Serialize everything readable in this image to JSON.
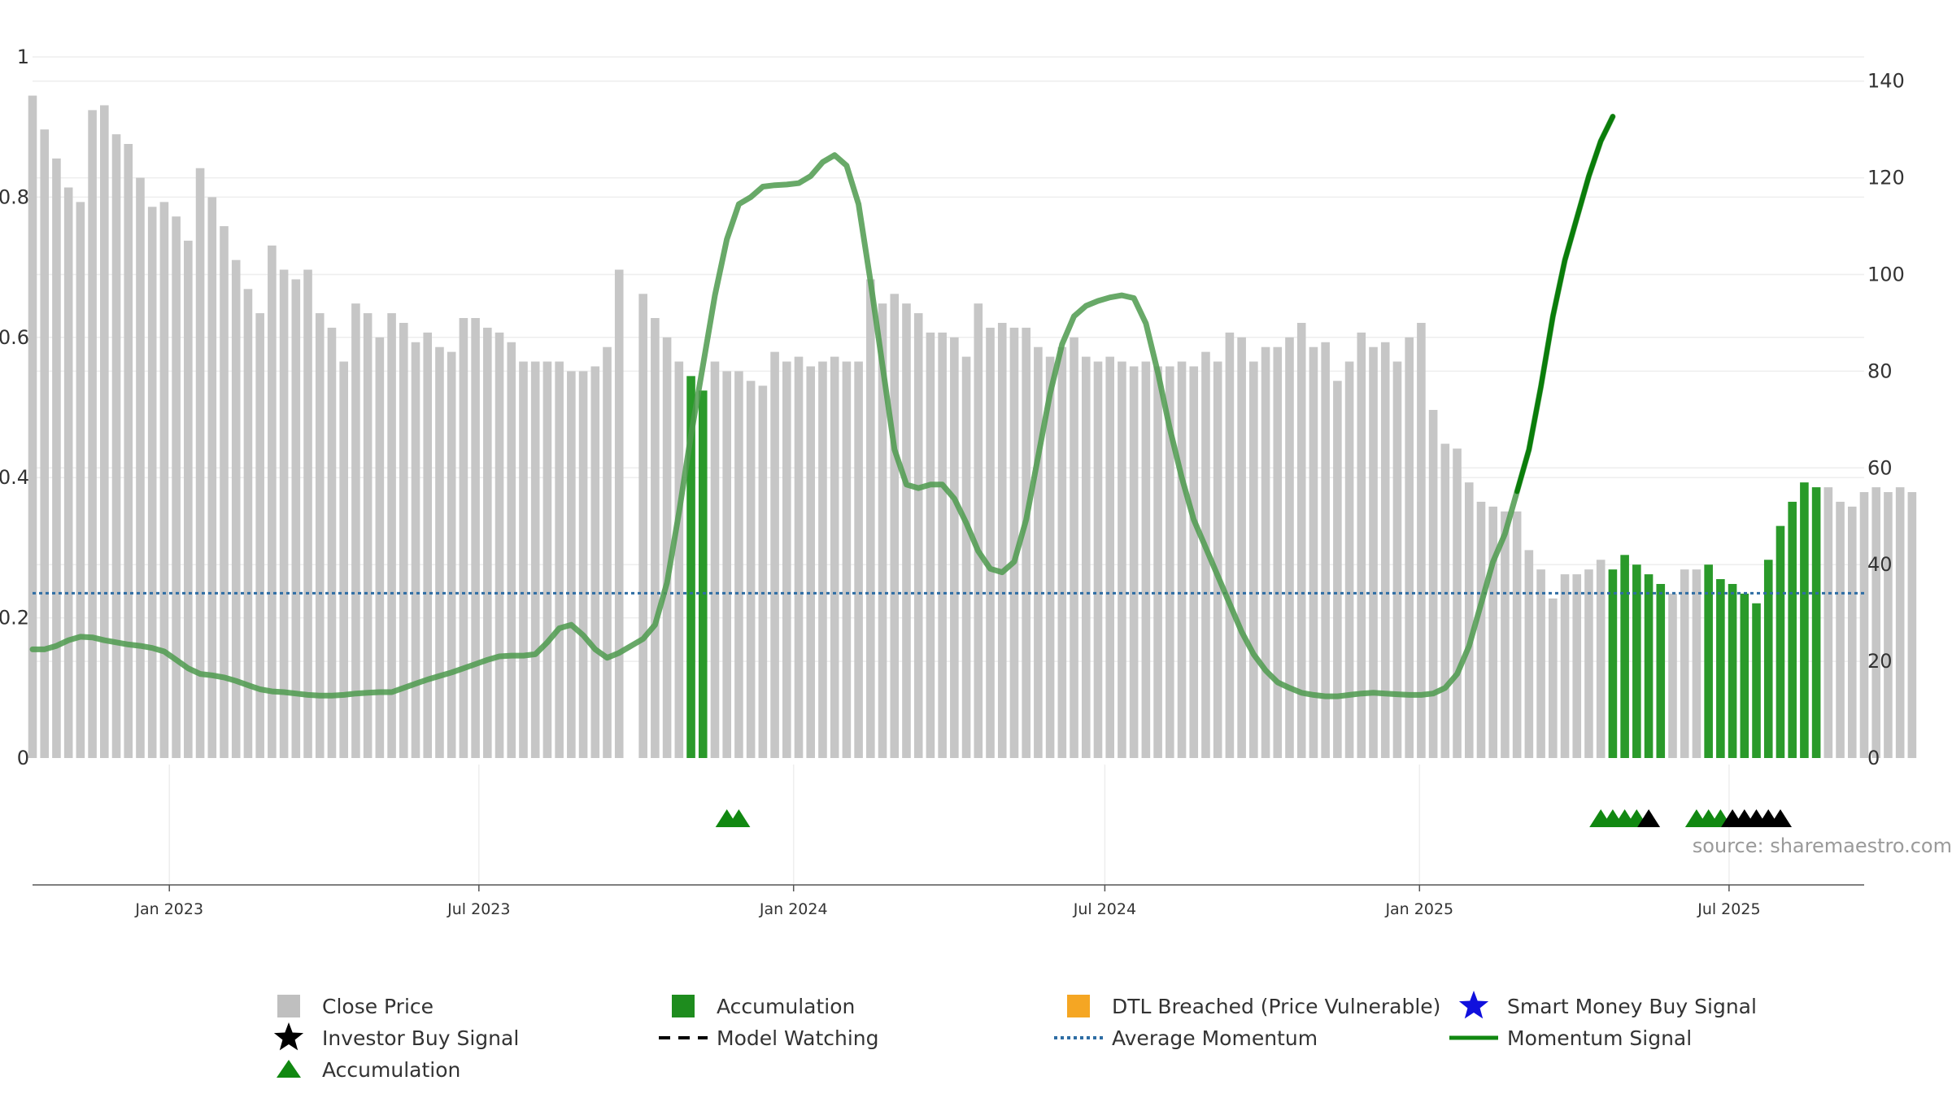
{
  "chart_data": {
    "type": "bar",
    "title": "",
    "source": "source: sharemaestro.com",
    "left_axis": {
      "range": [
        0,
        1
      ],
      "ticks": [
        "0",
        "0.2",
        "0.4",
        "0.6",
        "0.8",
        "1"
      ],
      "tick_values": [
        0,
        0.2,
        0.4,
        0.6,
        0.8,
        1
      ]
    },
    "right_axis": {
      "range": [
        0,
        145
      ],
      "ticks": [
        "0",
        "20",
        "40",
        "60",
        "80",
        "100",
        "120",
        "140"
      ],
      "tick_values": [
        0,
        20,
        40,
        60,
        80,
        100,
        120,
        140
      ]
    },
    "x_axis": {
      "start": "2022-10-13",
      "end": "2025-09-18",
      "ticks": [
        {
          "label": "Jan 2023",
          "date": "2023-01-01"
        },
        {
          "label": "Jul 2023",
          "date": "2023-07-01"
        },
        {
          "label": "Jan 2024",
          "date": "2024-01-01"
        },
        {
          "label": "Jul 2024",
          "date": "2024-07-01"
        },
        {
          "label": "Jan 2025",
          "date": "2025-01-01"
        },
        {
          "label": "Jul 2025",
          "date": "2025-07-01"
        }
      ]
    },
    "series": [
      {
        "name": "Close Price",
        "axis": "right",
        "start": "2022-10-13",
        "interval_days": 7,
        "values": [
          137,
          130,
          124,
          118,
          115,
          134,
          135,
          129,
          127,
          120,
          114,
          115,
          112,
          107,
          122,
          116,
          110,
          103,
          97,
          92,
          106,
          101,
          99,
          101,
          92,
          89,
          82,
          94,
          92,
          87,
          92,
          90,
          86,
          88,
          85,
          84,
          91,
          91,
          89,
          88,
          86,
          82,
          82,
          82,
          82,
          80,
          80,
          81,
          85,
          101,
          0,
          96,
          91,
          87,
          82,
          79,
          76,
          82,
          80,
          80,
          78,
          77,
          84,
          82,
          83,
          81,
          82,
          83,
          82,
          82,
          99,
          94,
          96,
          94,
          92,
          88,
          88,
          87,
          83,
          94,
          89,
          90,
          89,
          89,
          85,
          83,
          85,
          87,
          83,
          82,
          83,
          82,
          81,
          82,
          81,
          81,
          82,
          81,
          84,
          82,
          88,
          87,
          82,
          85,
          85,
          87,
          90,
          85,
          86,
          78,
          82,
          88,
          85,
          86,
          82,
          87,
          90,
          72,
          65,
          64,
          57,
          53,
          52,
          51,
          51,
          43,
          39,
          33,
          38,
          38,
          39,
          41,
          39,
          42,
          40,
          38,
          36,
          34,
          39,
          39,
          40,
          37,
          36,
          34,
          32,
          41,
          48,
          53,
          57,
          56,
          56,
          53,
          52,
          55,
          56,
          55,
          56,
          55
        ],
        "accumulation_indices": [
          55,
          56,
          132,
          133,
          134,
          135,
          136,
          140,
          141,
          142,
          143,
          144,
          145,
          146,
          147,
          148,
          149
        ]
      },
      {
        "name": "Momentum Signal",
        "axis": "left",
        "start": "2022-10-13",
        "interval_days": 7,
        "values": [
          0.155,
          0.155,
          0.16,
          0.168,
          0.173,
          0.172,
          0.168,
          0.165,
          0.162,
          0.16,
          0.157,
          0.152,
          0.14,
          0.128,
          0.12,
          0.118,
          0.115,
          0.11,
          0.104,
          0.098,
          0.095,
          0.094,
          0.092,
          0.09,
          0.089,
          0.089,
          0.09,
          0.092,
          0.093,
          0.094,
          0.094,
          0.1,
          0.106,
          0.112,
          0.117,
          0.122,
          0.128,
          0.134,
          0.14,
          0.145,
          0.146,
          0.146,
          0.148,
          0.165,
          0.185,
          0.19,
          0.175,
          0.155,
          0.143,
          0.15,
          0.16,
          0.17,
          0.19,
          0.25,
          0.35,
          0.46,
          0.56,
          0.66,
          0.74,
          0.79,
          0.8,
          0.815,
          0.817,
          0.818,
          0.82,
          0.83,
          0.85,
          0.86,
          0.845,
          0.79,
          0.68,
          0.56,
          0.44,
          0.39,
          0.385,
          0.39,
          0.39,
          0.37,
          0.335,
          0.295,
          0.27,
          0.265,
          0.28,
          0.34,
          0.43,
          0.52,
          0.59,
          0.63,
          0.645,
          0.652,
          0.657,
          0.66,
          0.656,
          0.62,
          0.55,
          0.47,
          0.4,
          0.34,
          0.3,
          0.26,
          0.22,
          0.18,
          0.148,
          0.125,
          0.108,
          0.1,
          0.093,
          0.09,
          0.088,
          0.088,
          0.09,
          0.092,
          0.093,
          0.092,
          0.091,
          0.09,
          0.09,
          0.092,
          0.1,
          0.12,
          0.16,
          0.22,
          0.28,
          0.32,
          0.38,
          0.44,
          0.53,
          0.63,
          0.71,
          0.77,
          0.83,
          0.88,
          0.915
        ]
      },
      {
        "name": "Average Momentum",
        "axis": "left",
        "value": 0.235
      }
    ],
    "markers": {
      "accumulation_triangles": [
        {
          "date": "2023-11-23"
        },
        {
          "date": "2023-11-30"
        },
        {
          "date": "2025-04-17"
        },
        {
          "date": "2025-04-24"
        },
        {
          "date": "2025-05-01"
        },
        {
          "date": "2025-05-08"
        },
        {
          "date": "2025-06-12"
        },
        {
          "date": "2025-06-19"
        },
        {
          "date": "2025-06-26"
        }
      ],
      "investor_buy_signals": [
        {
          "date": "2025-05-15"
        },
        {
          "date": "2025-07-03"
        },
        {
          "date": "2025-07-10"
        },
        {
          "date": "2025-07-17"
        },
        {
          "date": "2025-07-24"
        },
        {
          "date": "2025-07-31"
        }
      ]
    },
    "legend": {
      "placement": "bottom",
      "items": [
        {
          "label": "Close Price",
          "symbol": "square",
          "color": "#bfbfbf"
        },
        {
          "label": "Accumulation",
          "symbol": "square",
          "color": "#1e8c1e"
        },
        {
          "label": "DTL Breached (Price Vulnerable)",
          "symbol": "square",
          "color": "#f5a623"
        },
        {
          "label": "Smart Money Buy Signal",
          "symbol": "star",
          "color": "#1010dd"
        },
        {
          "label": "Investor Buy Signal",
          "symbol": "star",
          "color": "#000000"
        },
        {
          "label": "Model Watching",
          "symbol": "dash",
          "color": "#000000"
        },
        {
          "label": "Average Momentum",
          "symbol": "dotted",
          "color": "#2e6da4"
        },
        {
          "label": "Momentum Signal",
          "symbol": "line",
          "color": "#118811"
        },
        {
          "label": "Accumulation",
          "symbol": "triangle",
          "color": "#118811"
        }
      ]
    },
    "colors": {
      "bar": "#c6c6c6",
      "bar_accum": "#2a9a2a",
      "momentum_light": "#4d9a4d",
      "momentum_dark": "#0a7d0a",
      "average": "#2e6da4",
      "grid": "#eeeeee",
      "axis": "#555555"
    }
  }
}
